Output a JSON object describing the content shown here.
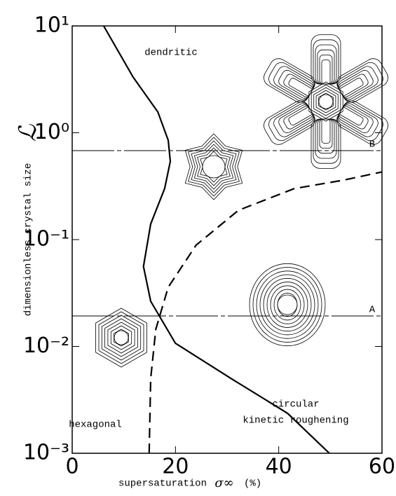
{
  "chart_data": {
    "type": "line",
    "x_label": "supersaturation",
    "x_symbol": "σ∞",
    "x_unit": "(%)",
    "y_label": "dimensionless crystal size",
    "y_symbol": "ℒ",
    "xlim": [
      0,
      60
    ],
    "xticks": [
      0,
      20,
      40,
      60
    ],
    "ylim": [
      0.001,
      10
    ],
    "log_y": true,
    "yticks": [
      {
        "value": 10,
        "label": "10¹"
      },
      {
        "value": 1,
        "label": "10⁰"
      },
      {
        "value": 0.1,
        "label": "10⁻¹"
      },
      {
        "value": 0.01,
        "label": "10⁻²"
      },
      {
        "value": 0.001,
        "label": "10⁻³"
      }
    ],
    "series": [
      {
        "color": "#000000",
        "dashed": false,
        "x": [
          6.1,
          11.8,
          16.6,
          18.6,
          19.0,
          17.9,
          15.2,
          13.8,
          15.2,
          20.0,
          30.8,
          41.7,
          49.8
        ],
        "values": [
          10,
          3.32,
          1.56,
          0.85,
          0.54,
          0.3,
          0.14,
          0.056,
          0.0265,
          0.0107,
          0.005,
          0.00237,
          0.001
        ]
      },
      {
        "color": "#000000",
        "dashed": true,
        "x": [
          14.9,
          15.2,
          16.2,
          18.6,
          24.0,
          32.2,
          43.0,
          52.5,
          60
        ],
        "values": [
          0.001,
          0.005,
          0.0145,
          0.0358,
          0.0887,
          0.188,
          0.3,
          0.36,
          0.43
        ]
      }
    ],
    "reference_lines": [
      {
        "label": "A",
        "value": 0.0193
      },
      {
        "label": "B",
        "value": 0.68
      }
    ],
    "annotations": [
      "dendritic",
      "hexagonal",
      "circular",
      "kinetic roughening"
    ]
  }
}
